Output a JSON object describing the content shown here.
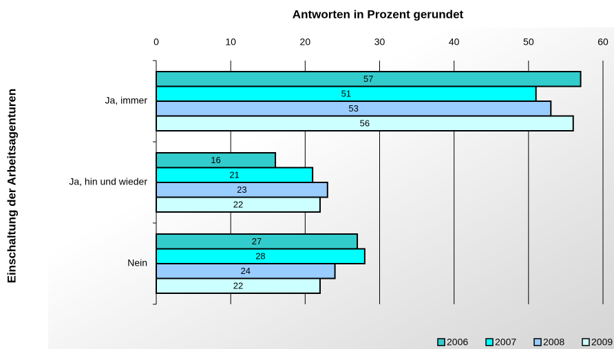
{
  "chart_data": {
    "type": "hbar",
    "title": "Antworten in Prozent gerundet",
    "y_label": "Einschaltung der Arbeitsagenturen",
    "categories": [
      "Ja, immer",
      "Ja, hin und wieder",
      "Nein"
    ],
    "series": [
      {
        "name": "2006",
        "color": "#33cccc",
        "values": [
          57,
          16,
          27
        ]
      },
      {
        "name": "2007",
        "color": "#00ffff",
        "values": [
          51,
          21,
          28
        ]
      },
      {
        "name": "2008",
        "color": "#99ccff",
        "values": [
          53,
          23,
          24
        ]
      },
      {
        "name": "2009",
        "color": "#ccffff",
        "values": [
          56,
          22,
          22
        ]
      }
    ],
    "xlim": [
      0,
      60
    ],
    "xticks": [
      0,
      10,
      20,
      30,
      40,
      50,
      60
    ],
    "grid": true,
    "legend": "bottom-right"
  }
}
